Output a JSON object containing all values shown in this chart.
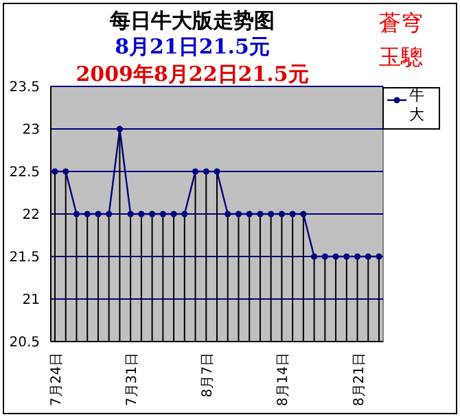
{
  "chart_data": {
    "type": "line",
    "title": "每日牛大版走势图",
    "subtitle": "8月21日21.5元",
    "annotations": [
      "2009年8月22日21.5元",
      "蒼穹",
      "玉驄"
    ],
    "categories": [
      "7月24日",
      null,
      null,
      null,
      null,
      null,
      null,
      "7月31日",
      null,
      null,
      null,
      null,
      null,
      null,
      "8月7日",
      null,
      null,
      null,
      null,
      null,
      null,
      "8月14日",
      null,
      null,
      null,
      null,
      null,
      null,
      "8月21日",
      null,
      null
    ],
    "series": [
      {
        "name": "牛大",
        "color": "#000080",
        "values": [
          22.5,
          22.5,
          22,
          22,
          22,
          22,
          23,
          22,
          22,
          22,
          22,
          22,
          22,
          22.5,
          22.5,
          22.5,
          22,
          22,
          22,
          22,
          22,
          22,
          22,
          22,
          21.5,
          21.5,
          21.5,
          21.5,
          21.5,
          21.5,
          21.5
        ],
        "errors": [
          [
            20.5,
            22.5
          ],
          [
            20.5,
            22.5
          ],
          [
            20.5,
            22
          ],
          [
            20.5,
            22
          ],
          [
            20.5,
            22
          ],
          [
            20.5,
            22
          ],
          [
            20.5,
            23
          ],
          [
            20.5,
            22
          ],
          [
            20.5,
            22
          ],
          [
            20.5,
            22
          ],
          [
            20.5,
            22
          ],
          [
            20.5,
            22
          ],
          [
            20.5,
            22
          ],
          [
            20.5,
            22.5
          ],
          [
            20.5,
            22.5
          ],
          [
            20.5,
            22.5
          ],
          [
            20.5,
            22
          ],
          [
            20.5,
            22
          ],
          [
            20.5,
            22
          ],
          [
            20.5,
            22
          ],
          [
            20.5,
            22
          ],
          [
            20.5,
            22
          ],
          [
            20.5,
            22
          ],
          [
            20.5,
            22
          ],
          [
            20.5,
            21.5
          ],
          [
            20.5,
            21.5
          ],
          [
            20.5,
            21.5
          ],
          [
            20.5,
            21.5
          ],
          [
            20.5,
            21.5
          ],
          [
            20.5,
            21.5
          ],
          [
            20.5,
            21.5
          ]
        ]
      }
    ],
    "ylim": [
      20.5,
      23.5
    ],
    "yticks": [
      20.5,
      21,
      21.5,
      22,
      22.5,
      23,
      23.5
    ],
    "grid": "y",
    "legend": "right",
    "marker": "circle",
    "line_style": "solid"
  }
}
